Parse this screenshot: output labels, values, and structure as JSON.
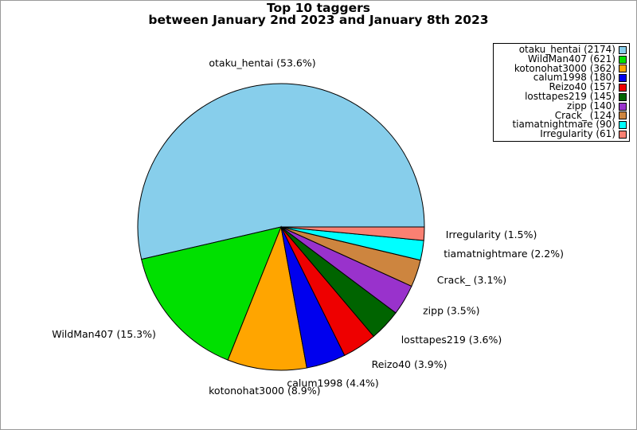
{
  "window": {
    "background": "#ffffff",
    "border_color": "#9a9a9a"
  },
  "chart_data": {
    "type": "pie",
    "title": "Top 10 taggers",
    "subtitle": "between January 2nd 2023 and January 8th 2023",
    "total": 4054,
    "start_angle_deg": 0,
    "direction": "counterclockwise",
    "grid": false,
    "legend_position": "top-right",
    "slice_border_color": "#000000",
    "series": [
      {
        "name": "otaku_hentai",
        "value": 2174,
        "pct": 53.6,
        "slice_label": "otaku_hentai (53.6%)",
        "legend_label": "otaku_hentai (2174)",
        "color": "#87CEEB"
      },
      {
        "name": "WildMan407",
        "value": 621,
        "pct": 15.3,
        "slice_label": "WildMan407 (15.3%)",
        "legend_label": "WildMan407 (621)",
        "color": "#00E000"
      },
      {
        "name": "kotonohat3000",
        "value": 362,
        "pct": 8.9,
        "slice_label": "kotonohat3000 (8.9%)",
        "legend_label": "kotonohat3000 (362)",
        "color": "#FFA500"
      },
      {
        "name": "calum1998",
        "value": 180,
        "pct": 4.4,
        "slice_label": "calum1998 (4.4%)",
        "legend_label": "calum1998 (180)",
        "color": "#0000EE"
      },
      {
        "name": "Reizo40",
        "value": 157,
        "pct": 3.9,
        "slice_label": "Reizo40 (3.9%)",
        "legend_label": "Reizo40 (157)",
        "color": "#EE0000"
      },
      {
        "name": "losttapes219",
        "value": 145,
        "pct": 3.6,
        "slice_label": "losttapes219 (3.6%)",
        "legend_label": "losttapes219 (145)",
        "color": "#006400"
      },
      {
        "name": "zipp",
        "value": 140,
        "pct": 3.5,
        "slice_label": "zipp (3.5%)",
        "legend_label": "zipp (140)",
        "color": "#9932CC"
      },
      {
        "name": "Crack_",
        "value": 124,
        "pct": 3.1,
        "slice_label": "Crack_ (3.1%)",
        "legend_label": "Crack_ (124)",
        "color": "#CD853F"
      },
      {
        "name": "tiamatnightmare",
        "value": 90,
        "pct": 2.2,
        "slice_label": "tiamatnightmare (2.2%)",
        "legend_label": "tiamatnightmare (90)",
        "color": "#00FFFF"
      },
      {
        "name": "Irregularity",
        "value": 61,
        "pct": 1.5,
        "slice_label": "Irregularity (1.5%)",
        "legend_label": "Irregularity (61)",
        "color": "#FA8072"
      }
    ]
  }
}
